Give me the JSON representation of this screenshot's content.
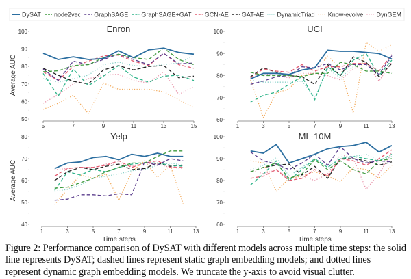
{
  "legend": [
    {
      "name": "DySAT",
      "color": "#2b6ea0",
      "style": "solid"
    },
    {
      "name": "node2vec",
      "color": "#3f9a3f",
      "style": "dashed"
    },
    {
      "name": "GraphSAGE",
      "color": "#5a3c8c",
      "style": "dashed"
    },
    {
      "name": "GraphSAGE+GAT",
      "color": "#2fb48a",
      "style": "dashed"
    },
    {
      "name": "GCN-AE",
      "color": "#e2596e",
      "style": "dashed"
    },
    {
      "name": "GAT-AE",
      "color": "#222222",
      "style": "dashed"
    },
    {
      "name": "DynamicTriad",
      "color": "#86d0c8",
      "style": "dotted"
    },
    {
      "name": "Know-evolve",
      "color": "#f2a95a",
      "style": "dotted"
    },
    {
      "name": "DynGEM",
      "color": "#e891a8",
      "style": "dotted"
    }
  ],
  "chart_data": [
    {
      "type": "line",
      "title": "Enron",
      "ylabel": "Average AUC",
      "xlabel": "",
      "xlim": [
        5,
        15
      ],
      "ylim": [
        50,
        100
      ],
      "xticks": [
        5,
        7,
        9,
        11,
        13,
        15
      ],
      "yticks": [
        50,
        60,
        70,
        80,
        90,
        100
      ],
      "x": [
        5,
        6,
        7,
        8,
        9,
        10,
        11,
        12,
        13,
        14,
        15
      ],
      "series": [
        {
          "name": "DySAT",
          "values": [
            87.5,
            84,
            85.5,
            84,
            84.5,
            89,
            85,
            89.5,
            90.5,
            88,
            87
          ]
        },
        {
          "name": "node2vec",
          "values": [
            77,
            77.5,
            80.5,
            81,
            85,
            87,
            85,
            84,
            90.5,
            84,
            81
          ]
        },
        {
          "name": "GraphSAGE",
          "values": [
            78.5,
            72,
            83,
            81,
            84,
            87,
            84,
            81,
            87.5,
            81.5,
            82
          ]
        },
        {
          "name": "GraphSAGE+GAT",
          "values": [
            76,
            63,
            78.5,
            69,
            74.5,
            80.5,
            74,
            71,
            74.5,
            75,
            72
          ]
        },
        {
          "name": "GCN-AE",
          "values": [
            77,
            72,
            80,
            83,
            86,
            86.5,
            83,
            80.5,
            87.5,
            81,
            79
          ]
        },
        {
          "name": "GAT-AE",
          "values": [
            79,
            75,
            71.5,
            70,
            78,
            80.5,
            78,
            80,
            80.5,
            73.5,
            74.5
          ]
        },
        {
          "name": "DynamicTriad",
          "values": [
            73,
            71,
            73,
            75,
            81,
            82.5,
            80.5,
            80,
            81,
            82,
            86
          ]
        },
        {
          "name": "Know-evolve",
          "values": [
            55.5,
            59,
            63.5,
            53,
            70.5,
            67,
            67,
            67,
            65.5,
            61,
            56.5
          ]
        },
        {
          "name": "DynGEM",
          "values": [
            59,
            64,
            70,
            73,
            75,
            75.5,
            72,
            70.5,
            77,
            64,
            68.5
          ]
        }
      ]
    },
    {
      "type": "line",
      "title": "UCI",
      "ylabel": "",
      "xlabel": "",
      "xlim": [
        1,
        13
      ],
      "ylim": [
        60,
        100
      ],
      "xticks": [
        1,
        3,
        5,
        7,
        9,
        11,
        13
      ],
      "yticks": [
        60,
        70,
        80,
        90,
        100
      ],
      "x": [
        2,
        3,
        4,
        5,
        6,
        7,
        8,
        9,
        10,
        11,
        12,
        13
      ],
      "series": [
        {
          "name": "DySAT",
          "values": [
            78.5,
            81,
            81,
            80.5,
            82.5,
            83.5,
            91.5,
            91,
            91,
            90.5,
            90,
            87.5
          ]
        },
        {
          "name": "node2vec",
          "values": [
            81.5,
            80,
            80,
            80,
            79.5,
            81,
            81,
            86,
            85,
            82,
            82,
            81
          ]
        },
        {
          "name": "GraphSAGE",
          "values": [
            76,
            77.5,
            79.5,
            80,
            84,
            83.5,
            85.5,
            82.5,
            85,
            85,
            80.5,
            89
          ]
        },
        {
          "name": "GraphSAGE+GAT",
          "values": [
            68,
            71,
            72.5,
            76,
            79.5,
            69,
            84,
            80,
            87,
            90,
            80,
            87
          ]
        },
        {
          "name": "GCN-AE",
          "values": [
            79,
            83,
            82,
            81.5,
            85,
            82,
            84,
            84,
            85.5,
            85.5,
            82,
            89.5
          ]
        },
        {
          "name": "GAT-AE",
          "values": [
            79.5,
            83.5,
            81.5,
            80,
            79.5,
            76,
            85,
            80,
            88.5,
            86,
            79.5,
            85.5
          ]
        },
        {
          "name": "DynamicTriad",
          "values": [
            78,
            77,
            77,
            77,
            77.5,
            70,
            83,
            79,
            84,
            86,
            82,
            88
          ]
        },
        {
          "name": "Know-evolve",
          "values": [
            78,
            61,
            72,
            74,
            80,
            81,
            89,
            83,
            63,
            95,
            91,
            94
          ]
        },
        {
          "name": "DynGEM",
          "values": [
            79,
            81,
            80,
            79,
            81,
            81,
            80,
            78,
            83,
            86,
            77.5,
            86
          ]
        }
      ]
    },
    {
      "type": "line",
      "title": "Yelp",
      "ylabel": "Average AUC",
      "xlabel": "Time steps",
      "xlim": [
        1,
        13
      ],
      "ylim": [
        40,
        80
      ],
      "xticks": [
        1,
        3,
        5,
        7,
        9,
        11,
        13
      ],
      "yticks": [
        40,
        50,
        60,
        70,
        80
      ],
      "x": [
        2,
        3,
        4,
        5,
        6,
        7,
        8,
        9,
        10,
        11,
        12
      ],
      "series": [
        {
          "name": "DySAT",
          "values": [
            65.5,
            68,
            68.5,
            70.5,
            71,
            69.5,
            72,
            71,
            72.5,
            71,
            71
          ]
        },
        {
          "name": "node2vec",
          "values": [
            56.5,
            57,
            59,
            61,
            64,
            66,
            68,
            68,
            71,
            73.5,
            73.5
          ]
        },
        {
          "name": "GraphSAGE",
          "values": [
            51,
            51.5,
            53.5,
            53.5,
            53,
            54,
            53.5,
            68.5,
            67,
            70,
            69
          ]
        },
        {
          "name": "GraphSAGE+GAT",
          "values": [
            55.5,
            64,
            62.5,
            65,
            64,
            66,
            67.5,
            68,
            68,
            67,
            66.5
          ]
        },
        {
          "name": "GCN-AE",
          "values": [
            62,
            65.5,
            66,
            66,
            67,
            69,
            66,
            68,
            69,
            66,
            66
          ]
        },
        {
          "name": "GAT-AE",
          "values": [
            60,
            64,
            66,
            65,
            66.5,
            67.5,
            65,
            65.5,
            68,
            66.5,
            67
          ]
        },
        {
          "name": "DynamicTriad",
          "values": [
            55,
            56,
            58,
            61,
            62,
            63,
            64.5,
            65,
            67,
            68,
            67
          ]
        },
        {
          "name": "Know-evolve",
          "values": [
            49,
            56,
            62.5,
            61,
            63,
            51,
            64,
            69,
            61.5,
            67,
            49.5
          ]
        },
        {
          "name": "DynGEM",
          "values": [
            65,
            65.5,
            66,
            66,
            67.5,
            68,
            66.5,
            68,
            67.5,
            66,
            65.5
          ]
        }
      ]
    },
    {
      "type": "line",
      "title": "ML-10M",
      "ylabel": "",
      "xlabel": "Time steps",
      "xlim": [
        1,
        13
      ],
      "ylim": [
        60,
        100
      ],
      "xticks": [
        1,
        3,
        5,
        7,
        9,
        11,
        13
      ],
      "yticks": [
        60,
        70,
        80,
        90,
        100
      ],
      "x": [
        2,
        3,
        4,
        5,
        6,
        7,
        8,
        9,
        10,
        11,
        12,
        13
      ],
      "series": [
        {
          "name": "DySAT",
          "values": [
            93.5,
            92.5,
            96.5,
            88,
            90,
            92,
            94.5,
            95.5,
            96,
            97.5,
            93,
            96
          ]
        },
        {
          "name": "node2vec",
          "values": [
            84,
            86,
            88,
            81,
            83,
            89.5,
            85,
            89,
            85,
            83,
            89,
            90
          ]
        },
        {
          "name": "GraphSAGE",
          "values": [
            93,
            89,
            87.5,
            85,
            88,
            92,
            87,
            95.5,
            90,
            88,
            89,
            88.5
          ]
        },
        {
          "name": "GraphSAGE+GAT",
          "values": [
            78,
            83,
            89,
            80,
            85,
            90,
            86,
            90,
            91,
            90,
            89,
            92
          ]
        },
        {
          "name": "GCN-AE",
          "values": [
            81,
            82,
            85,
            80,
            81,
            85,
            82,
            90,
            89,
            87,
            90,
            94
          ]
        },
        {
          "name": "GAT-AE",
          "values": [
            84,
            86,
            87,
            87.5,
            82.5,
            86.5,
            81,
            90,
            90,
            89,
            87,
            88.5
          ]
        },
        {
          "name": "DynamicTriad",
          "values": [
            85,
            87,
            90.5,
            82,
            86,
            90,
            86,
            91,
            91,
            92,
            89,
            91
          ]
        },
        {
          "name": "Know-evolve",
          "values": [
            89,
            88,
            75,
            81,
            82,
            84,
            82,
            79.5,
            86,
            85,
            81,
            87
          ]
        },
        {
          "name": "DynGEM",
          "values": [
            85,
            83,
            85,
            81,
            82,
            80,
            83,
            92,
            90,
            76,
            83,
            93
          ]
        }
      ]
    }
  ],
  "caption": "Figure 2: Performance comparison of DySAT with different models across multiple time steps: the solid line represents DySAT; dashed lines represent static graph embedding models; and dotted lines represent dynamic graph embedding models. We truncate the y-axis to avoid visual clutter."
}
